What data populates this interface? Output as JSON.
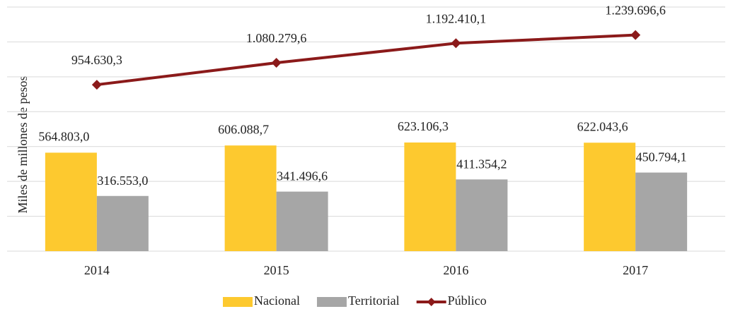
{
  "chart_data": {
    "type": "bar_line",
    "y_label": "Miles de millones de pesos",
    "categories": [
      "2014",
      "2015",
      "2016",
      "2017"
    ],
    "series": [
      {
        "name": "Nacional",
        "type": "bar",
        "color": "#fdc92f",
        "values": [
          564803.0,
          606088.7,
          623106.3,
          622043.6
        ],
        "value_labels": [
          "564.803,0",
          "606.088,7",
          "623.106,3",
          "622.043,6"
        ]
      },
      {
        "name": "Territorial",
        "type": "bar",
        "color": "#a6a6a6",
        "values": [
          316553.0,
          341496.6,
          411354.2,
          450794.1
        ],
        "value_labels": [
          "316.553,0",
          "341.496,6",
          "411.354,2",
          "450.794,1"
        ]
      },
      {
        "name": "Público",
        "type": "line",
        "color": "#8b1a1a",
        "values": [
          954630.3,
          1080279.6,
          1192410.1,
          1239696.6
        ],
        "value_labels": [
          "954.630,3",
          "1.080.279,6",
          "1.192.410,1",
          "1.239.696,6"
        ]
      }
    ],
    "ylim": [
      0,
      1400000
    ],
    "yticks": [
      0,
      200000,
      400000,
      600000,
      800000,
      1000000,
      1200000,
      1400000
    ],
    "grid": true,
    "legend": "bottom"
  }
}
